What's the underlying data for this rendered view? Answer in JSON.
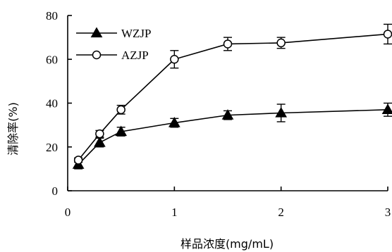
{
  "chart_data": {
    "type": "line",
    "title": "",
    "xlabel": "样品浓度(mg/mL)",
    "ylabel": "清除率(%)",
    "xlim": [
      0,
      3
    ],
    "ylim": [
      0,
      80
    ],
    "x_ticks": [
      "0",
      "1",
      "2",
      "3"
    ],
    "y_ticks": [
      "0",
      "20",
      "40",
      "60",
      "80"
    ],
    "legend_position": "top-left",
    "series": [
      {
        "name": "WZJP",
        "marker": "filled-triangle",
        "x": [
          0.1,
          0.3,
          0.5,
          1.0,
          1.5,
          2.0,
          3.0
        ],
        "values": [
          12,
          22,
          27,
          31,
          34.5,
          35.5,
          37
        ],
        "error": [
          2,
          2,
          2,
          2,
          2,
          4,
          3
        ]
      },
      {
        "name": "AZJP",
        "marker": "open-circle",
        "x": [
          0.1,
          0.3,
          0.5,
          1.0,
          1.5,
          2.0,
          3.0
        ],
        "values": [
          14,
          26,
          37,
          60,
          67,
          67.5,
          71.5
        ],
        "error": [
          1,
          1.5,
          2,
          4,
          3,
          2.5,
          4.5
        ]
      }
    ]
  }
}
